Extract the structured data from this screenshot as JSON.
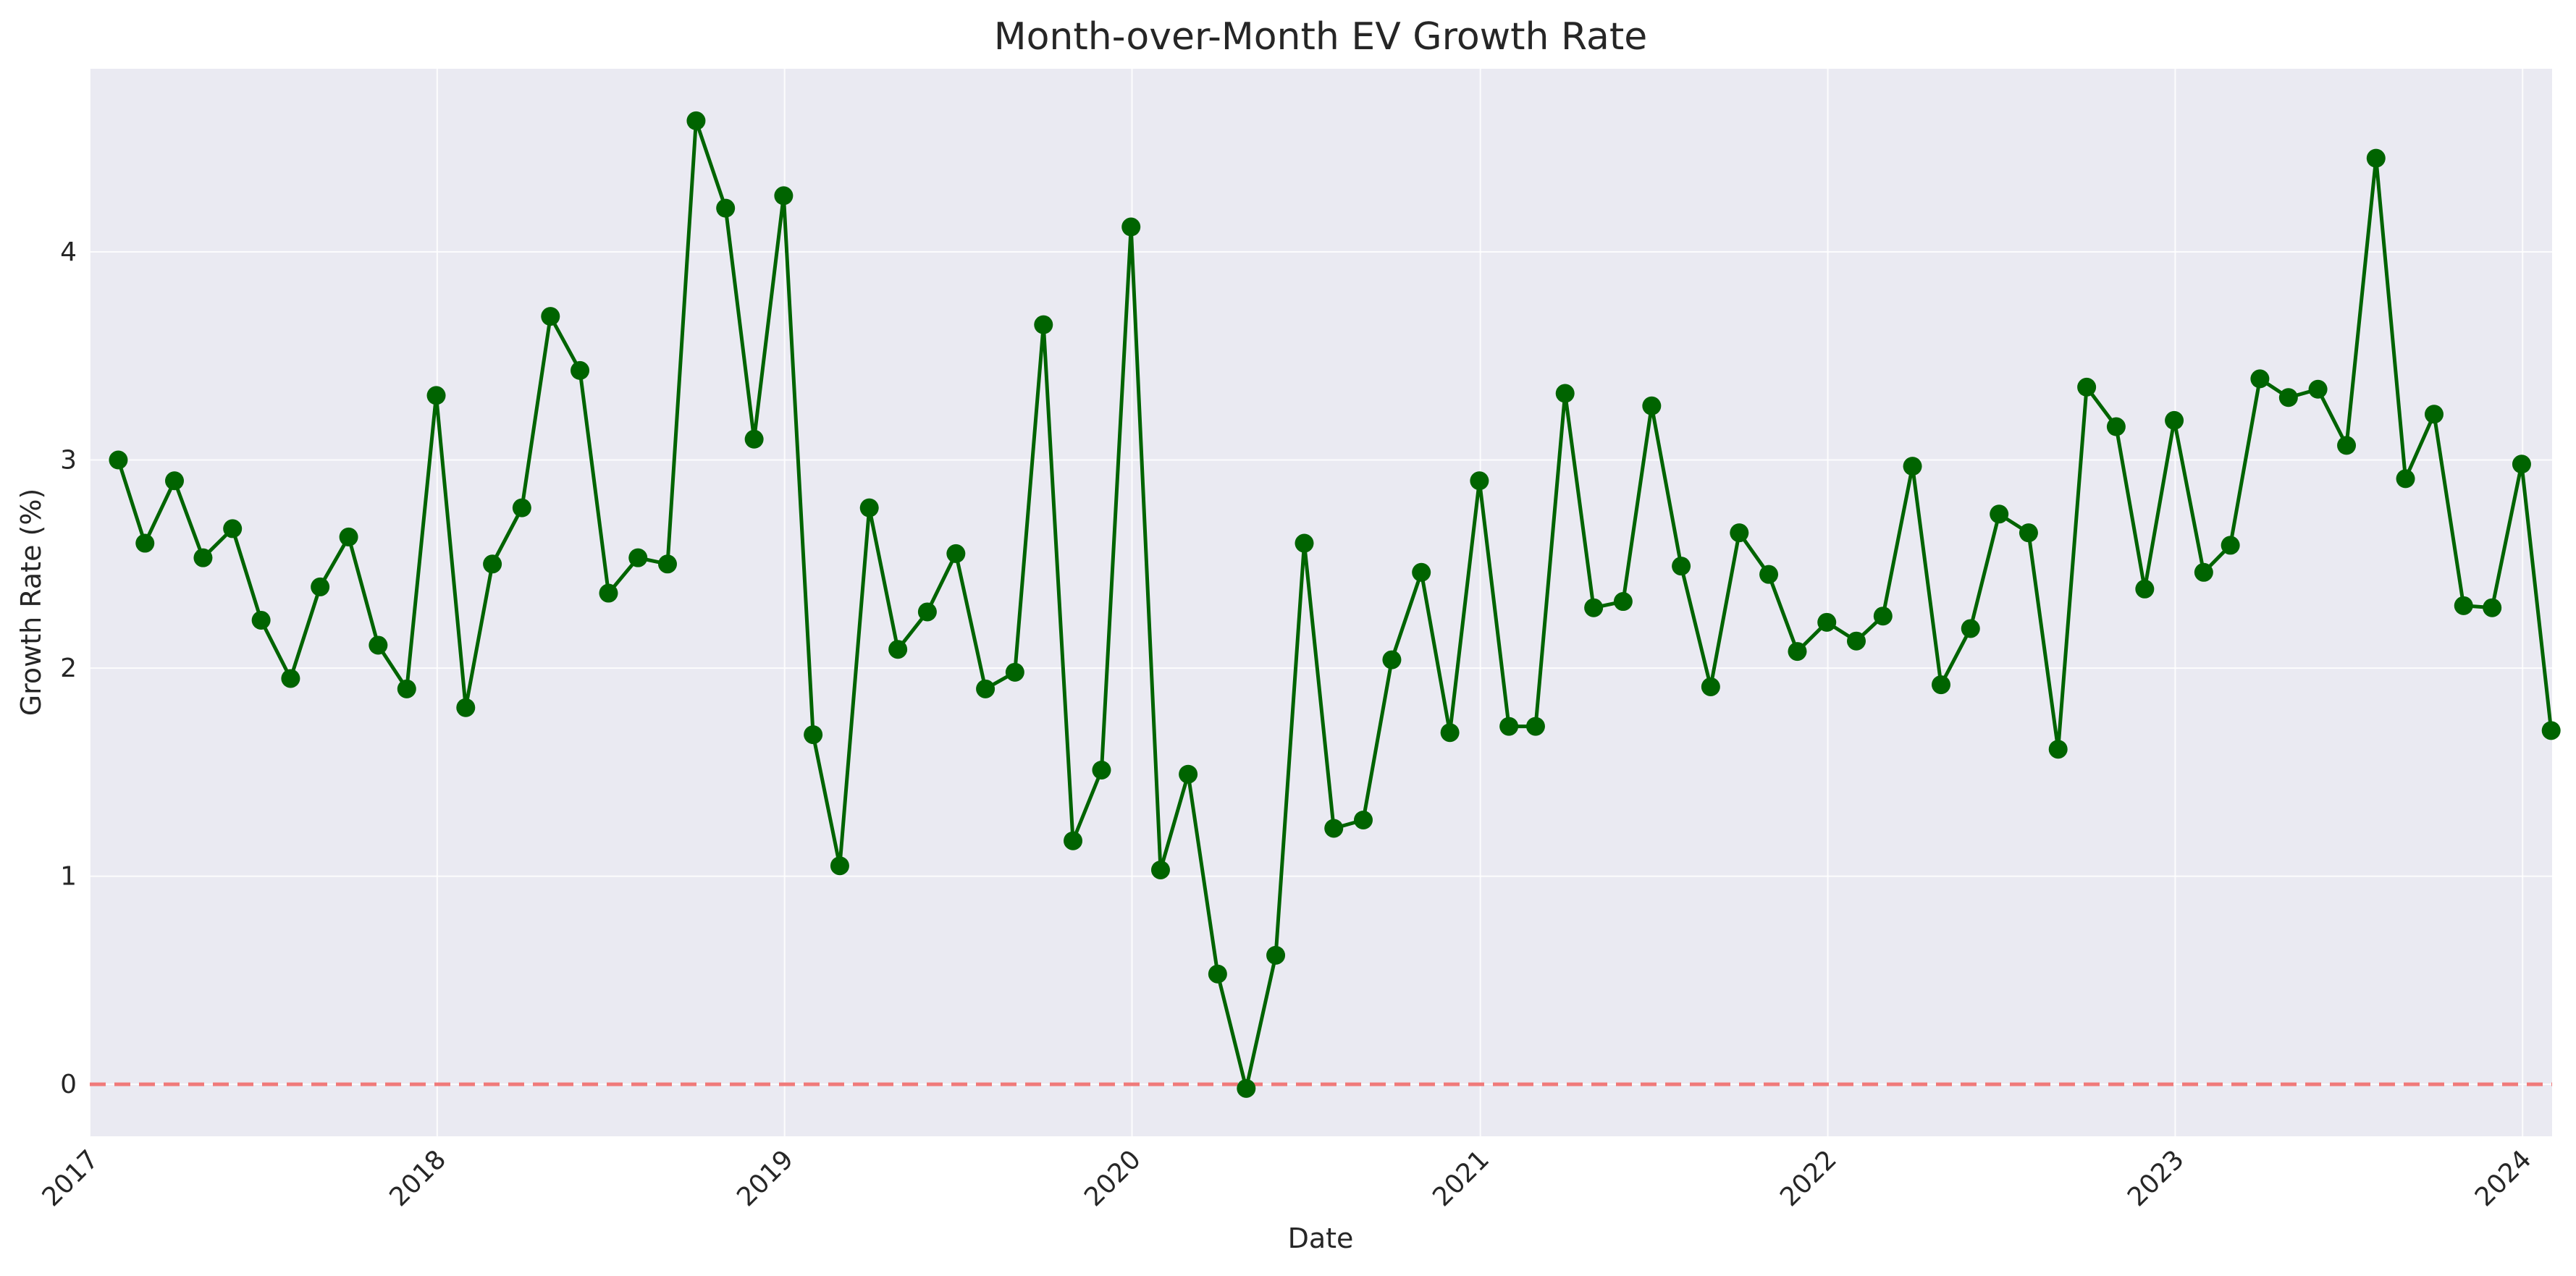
{
  "chart_data": {
    "type": "line",
    "title": "Month-over-Month EV Growth Rate",
    "xlabel": "Date",
    "ylabel": "Growth Rate (%)",
    "x_axis": "date",
    "xlim": [
      "2017-01-01",
      "2024-02-01"
    ],
    "ylim": [
      -0.25,
      4.88
    ],
    "yticks": [
      0,
      1,
      2,
      3,
      4
    ],
    "xticks": [
      "2017",
      "2018",
      "2019",
      "2020",
      "2021",
      "2022",
      "2023",
      "2024"
    ],
    "grid": true,
    "legend": "none",
    "colors": {
      "plot_background": "#EAEAF2",
      "line": "#006400",
      "reference_line": "#F07A7A",
      "text": "#262626"
    },
    "reference_line": {
      "y": 0,
      "style": "dashed"
    },
    "series": [
      {
        "x": [
          "2017-01-31",
          "2017-02-28",
          "2017-03-31",
          "2017-04-30",
          "2017-05-31",
          "2017-06-30",
          "2017-07-31",
          "2017-08-31",
          "2017-09-30",
          "2017-10-31",
          "2017-11-30",
          "2017-12-31",
          "2018-01-31",
          "2018-02-28",
          "2018-03-31",
          "2018-04-30",
          "2018-05-31",
          "2018-06-30",
          "2018-07-31",
          "2018-08-31",
          "2018-09-30",
          "2018-10-31",
          "2018-11-30",
          "2018-12-31",
          "2019-01-31",
          "2019-02-28",
          "2019-03-31",
          "2019-04-30",
          "2019-05-31",
          "2019-06-30",
          "2019-07-31",
          "2019-08-31",
          "2019-09-30",
          "2019-10-31",
          "2019-11-30",
          "2019-12-31",
          "2020-01-31",
          "2020-02-29",
          "2020-03-31",
          "2020-04-30",
          "2020-05-31",
          "2020-06-30",
          "2020-07-31",
          "2020-08-31",
          "2020-09-30",
          "2020-10-31",
          "2020-11-30",
          "2020-12-31",
          "2021-01-31",
          "2021-02-28",
          "2021-03-31",
          "2021-04-30",
          "2021-05-31",
          "2021-06-30",
          "2021-07-31",
          "2021-08-31",
          "2021-09-30",
          "2021-10-31",
          "2021-11-30",
          "2021-12-31",
          "2022-01-31",
          "2022-02-28",
          "2022-03-31",
          "2022-04-30",
          "2022-05-31",
          "2022-06-30",
          "2022-07-31",
          "2022-08-31",
          "2022-09-30",
          "2022-10-31",
          "2022-11-30",
          "2022-12-31",
          "2023-01-31",
          "2023-02-28",
          "2023-03-31",
          "2023-04-30",
          "2023-05-31",
          "2023-06-30",
          "2023-07-31",
          "2023-08-31",
          "2023-09-30",
          "2023-10-31",
          "2023-11-30",
          "2023-12-31",
          "2024-01-31"
        ],
        "values": [
          3.0,
          2.6,
          2.9,
          2.53,
          2.67,
          2.23,
          1.95,
          2.39,
          2.63,
          2.11,
          1.9,
          3.31,
          1.81,
          2.5,
          2.77,
          3.69,
          3.43,
          2.36,
          2.53,
          2.5,
          4.63,
          4.21,
          3.1,
          4.27,
          1.68,
          1.05,
          2.77,
          2.09,
          2.27,
          2.55,
          1.9,
          1.98,
          3.65,
          1.17,
          1.51,
          4.12,
          1.03,
          1.49,
          0.53,
          -0.02,
          0.62,
          2.6,
          1.23,
          1.27,
          2.04,
          2.46,
          1.69,
          2.9,
          1.72,
          1.72,
          3.32,
          2.29,
          2.32,
          3.26,
          2.49,
          1.91,
          2.65,
          2.45,
          2.08,
          2.22,
          2.13,
          2.25,
          2.97,
          1.92,
          2.19,
          2.74,
          2.65,
          1.61,
          3.35,
          3.16,
          2.38,
          3.19,
          2.46,
          2.59,
          3.39,
          3.3,
          3.34,
          3.07,
          4.45,
          2.91,
          3.22,
          2.3,
          2.29,
          2.98,
          1.7
        ]
      }
    ]
  }
}
